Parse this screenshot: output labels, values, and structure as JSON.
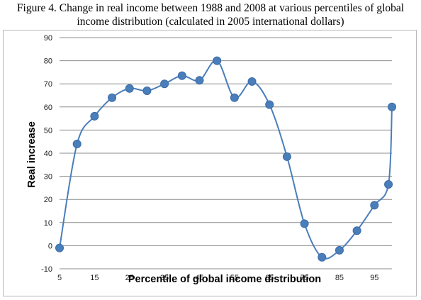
{
  "title_lines": [
    "Figure 4. Change in real income between 1988 and 2008 at various percentiles of global",
    "income distribution (calculated in 2005 international dollars)"
  ],
  "chart_data": {
    "type": "line",
    "title": "Figure 4. Change in real income between 1988 and 2008 at various percentiles of global income distribution (calculated in 2005 international dollars)",
    "xlabel": "Percentile of global income distribution",
    "ylabel": "Real increase",
    "x_ticks": [
      5,
      15,
      25,
      35,
      45,
      55,
      65,
      75,
      85,
      95
    ],
    "y_ticks": [
      -10,
      0,
      10,
      20,
      30,
      40,
      50,
      60,
      70,
      80,
      90
    ],
    "xlim": [
      5,
      100
    ],
    "ylim": [
      -10,
      90
    ],
    "grid": "horizontal",
    "legend": "none",
    "smooth": true,
    "color": "#4a7ebb",
    "series": [
      {
        "x": [
          5,
          10,
          15,
          20,
          25,
          30,
          35,
          40,
          45,
          50,
          55,
          60,
          65,
          70,
          75,
          80,
          85,
          90,
          95,
          99,
          100
        ],
        "values": [
          -1,
          44,
          56,
          64,
          68,
          67,
          70,
          73.5,
          71.5,
          80,
          64,
          71,
          61,
          38.5,
          9.5,
          -5,
          -2,
          6.5,
          17.5,
          26.5,
          60
        ]
      }
    ]
  }
}
